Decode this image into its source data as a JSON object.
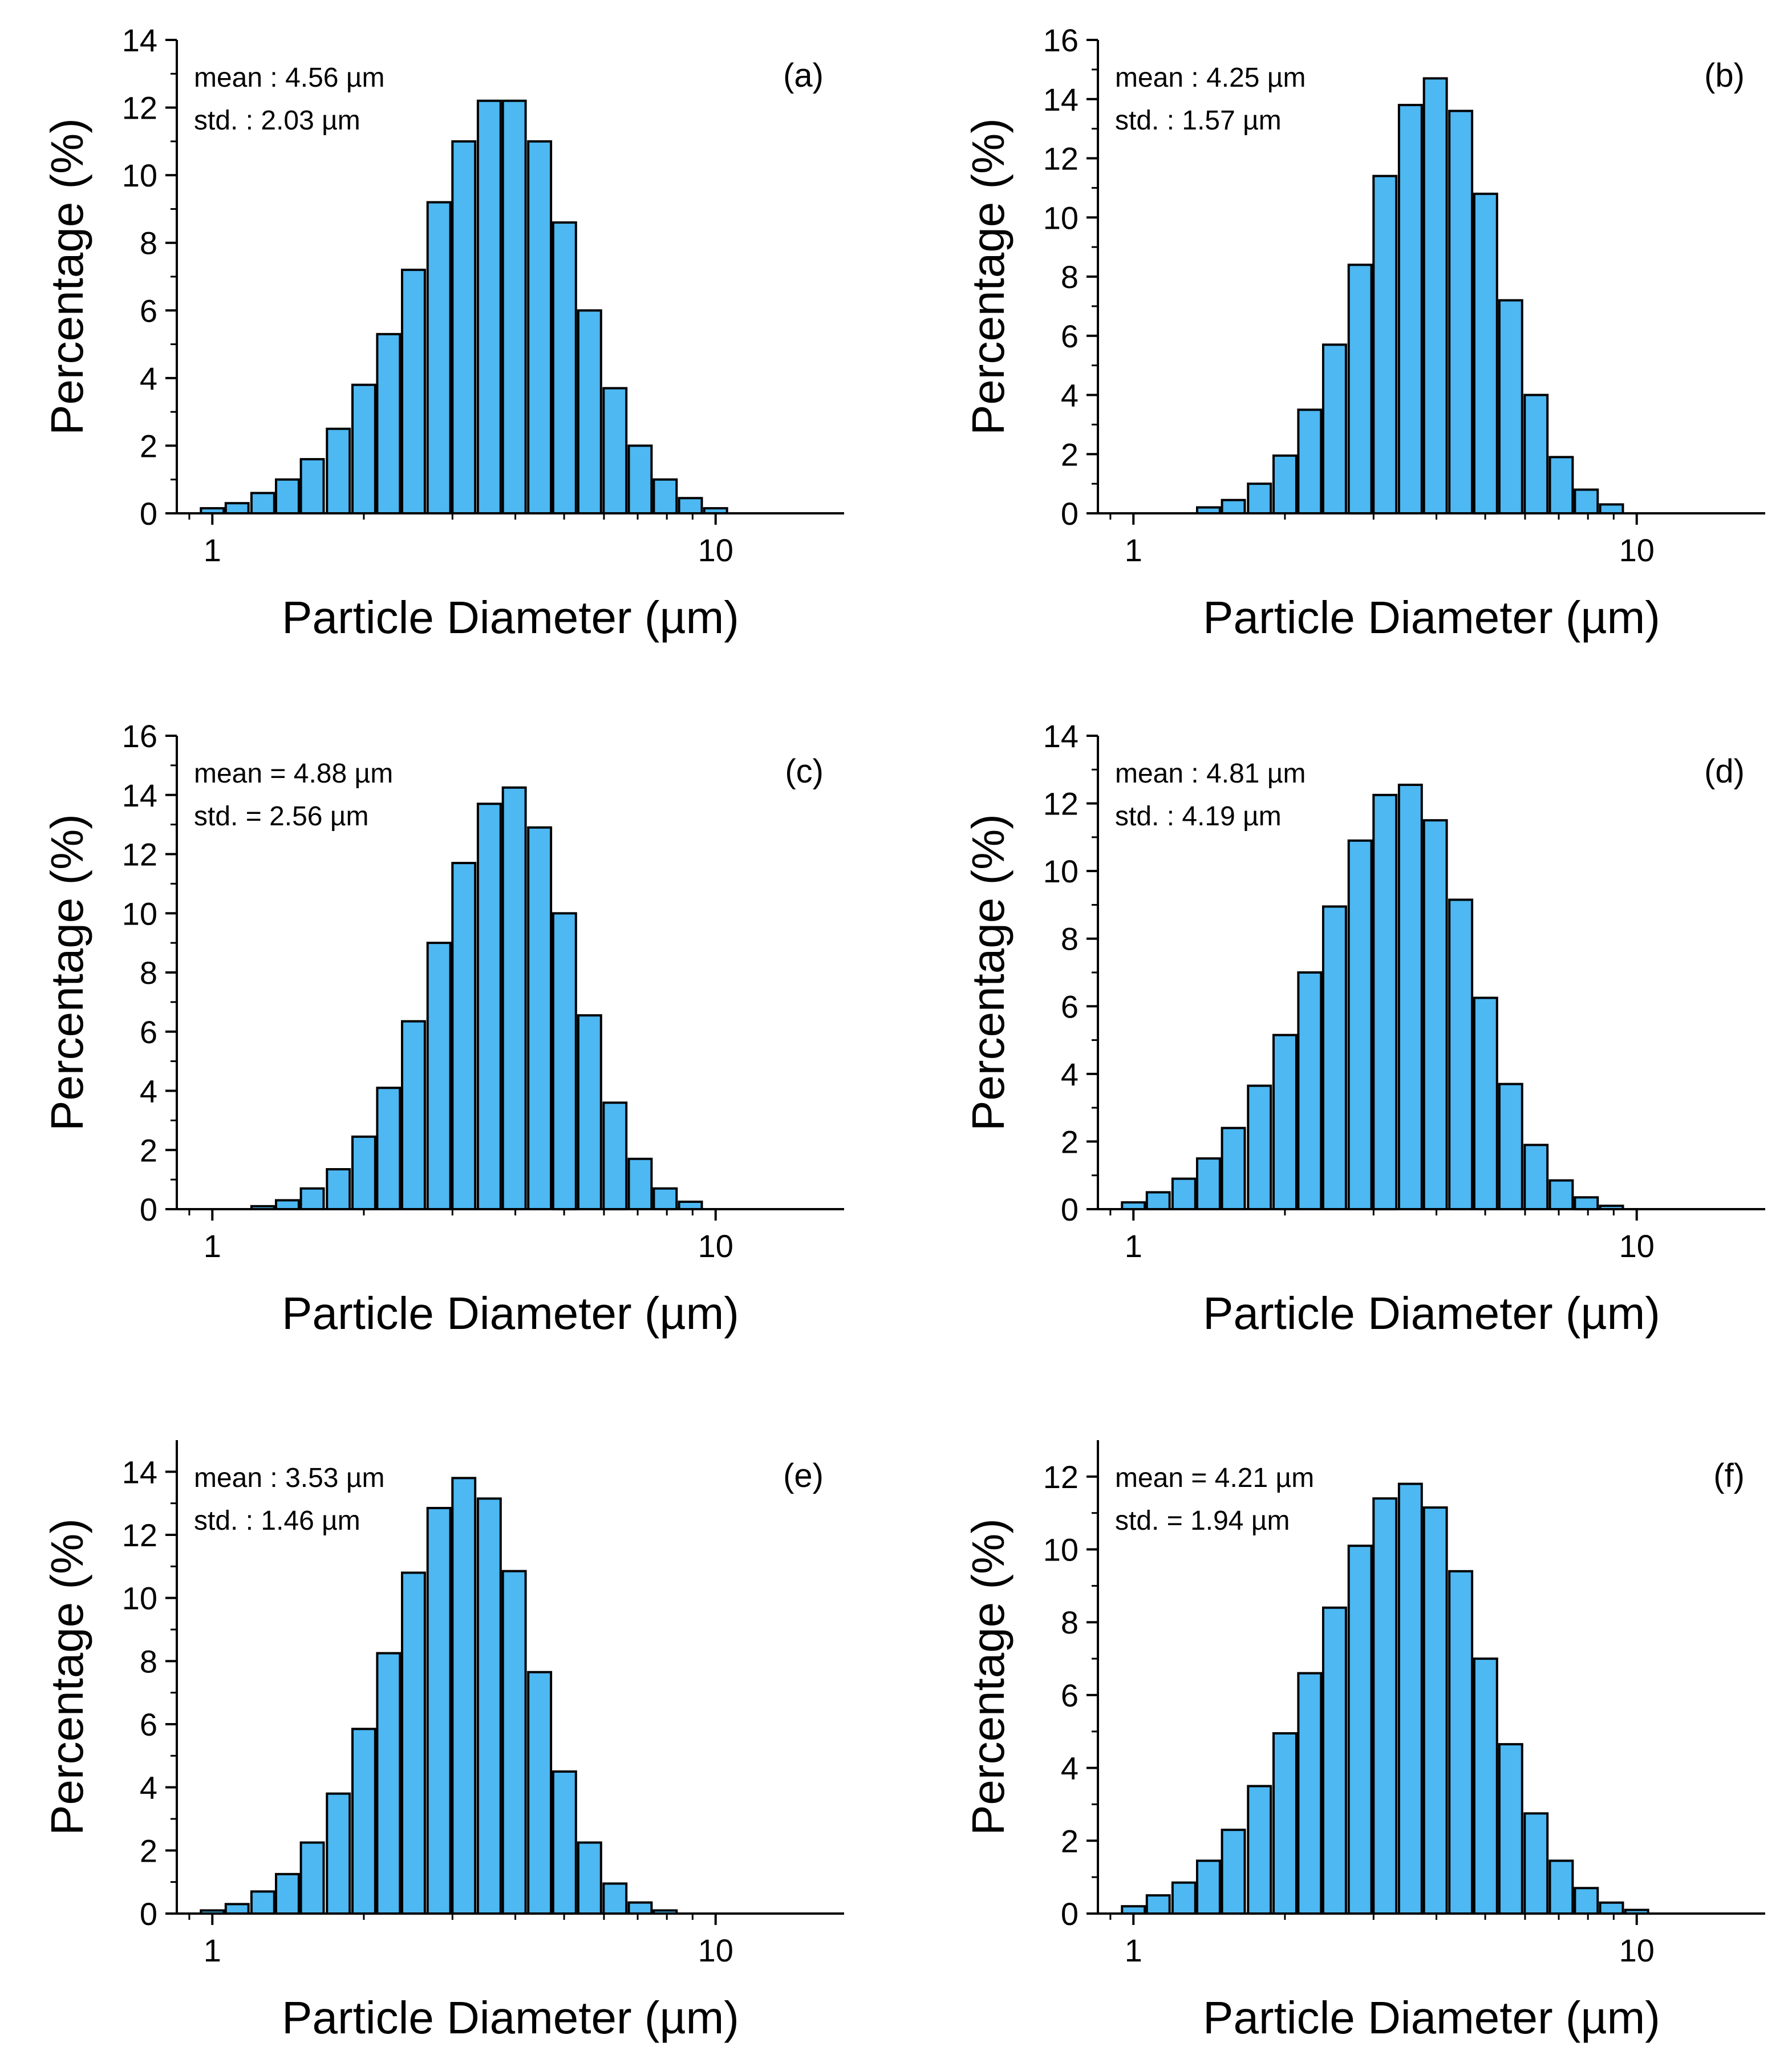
{
  "style": {
    "bar_color": "#4DB8F2",
    "edge_color": "#000000"
  },
  "chart_data": [
    {
      "type": "bar",
      "panel_label": "(a)",
      "xlabel": "Particle Diameter (µm)",
      "ylabel": "Percentage (%)",
      "x_scale": "log",
      "xlim": [
        0.85,
        18
      ],
      "x_ticks": [
        1,
        10
      ],
      "ylim": [
        0,
        14
      ],
      "y_ticks": [
        0,
        2,
        4,
        6,
        8,
        10,
        12,
        14
      ],
      "grid": false,
      "annotations": [
        "mean : 4.56 µm",
        "std. : 2.03 µm"
      ],
      "x": [
        1.0,
        1.12,
        1.26,
        1.41,
        1.58,
        1.78,
        2.0,
        2.24,
        2.51,
        2.82,
        3.16,
        3.55,
        3.98,
        4.47,
        5.01,
        5.62,
        6.31,
        7.08,
        7.94,
        8.91,
        10.0,
        11.22,
        12.59,
        14.13
      ],
      "values": [
        0.15,
        0.3,
        0.6,
        1.0,
        1.6,
        2.5,
        3.8,
        5.3,
        7.2,
        9.2,
        11.0,
        12.2,
        12.2,
        11.0,
        8.6,
        6.0,
        3.7,
        2.0,
        1.0,
        0.45,
        0.15,
        0.0,
        0.0,
        0.0
      ]
    },
    {
      "type": "bar",
      "panel_label": "(b)",
      "xlabel": "Particle Diameter (µm)",
      "ylabel": "Percentage (%)",
      "x_scale": "log",
      "xlim": [
        0.85,
        18
      ],
      "x_ticks": [
        1,
        10
      ],
      "ylim": [
        0,
        16
      ],
      "y_ticks": [
        0,
        2,
        4,
        6,
        8,
        10,
        12,
        14,
        16
      ],
      "grid": false,
      "annotations": [
        "mean : 4.25 µm",
        "std. : 1.57 µm"
      ],
      "x": [
        1.41,
        1.58,
        1.78,
        2.0,
        2.24,
        2.51,
        2.82,
        3.16,
        3.55,
        3.98,
        4.47,
        5.01,
        5.62,
        6.31,
        7.08,
        7.94,
        8.91,
        10.0
      ],
      "values": [
        0.2,
        0.45,
        1.0,
        1.95,
        3.5,
        5.7,
        8.4,
        11.4,
        13.8,
        14.7,
        13.6,
        10.8,
        7.2,
        4.0,
        1.9,
        0.8,
        0.3,
        0.0
      ]
    },
    {
      "type": "bar",
      "panel_label": "(c)",
      "xlabel": "Particle Diameter (µm)",
      "ylabel": "Percentage (%)",
      "x_scale": "log",
      "xlim": [
        0.85,
        18
      ],
      "x_ticks": [
        1,
        10
      ],
      "ylim": [
        0,
        16
      ],
      "y_ticks": [
        0,
        2,
        4,
        6,
        8,
        10,
        12,
        14,
        16
      ],
      "grid": false,
      "annotations": [
        "mean = 4.88 µm",
        "std. = 2.56 µm"
      ],
      "x": [
        1.26,
        1.41,
        1.58,
        1.78,
        2.0,
        2.24,
        2.51,
        2.82,
        3.16,
        3.55,
        3.98,
        4.47,
        5.01,
        5.62,
        6.31,
        7.08,
        7.94,
        8.91,
        10.0
      ],
      "values": [
        0.1,
        0.3,
        0.7,
        1.35,
        2.45,
        4.1,
        6.35,
        9.0,
        11.7,
        13.7,
        14.25,
        12.9,
        10.0,
        6.55,
        3.6,
        1.7,
        0.7,
        0.25,
        0.0
      ]
    },
    {
      "type": "bar",
      "panel_label": "(d)",
      "xlabel": "Particle Diameter (µm)",
      "ylabel": "Percentage (%)",
      "x_scale": "log",
      "xlim": [
        0.85,
        18
      ],
      "x_ticks": [
        1,
        10
      ],
      "ylim": [
        0,
        14
      ],
      "y_ticks": [
        0,
        2,
        4,
        6,
        8,
        10,
        12,
        14
      ],
      "grid": false,
      "annotations": [
        "mean : 4.81 µm",
        "std. : 4.19 µm"
      ],
      "x": [
        1.0,
        1.12,
        1.26,
        1.41,
        1.58,
        1.78,
        2.0,
        2.24,
        2.51,
        2.82,
        3.16,
        3.55,
        3.98,
        4.47,
        5.01,
        5.62,
        6.31,
        7.08,
        7.94,
        8.91,
        10.0,
        11.22,
        12.59
      ],
      "values": [
        0.2,
        0.5,
        0.9,
        1.5,
        2.4,
        3.65,
        5.15,
        7.0,
        8.95,
        10.9,
        12.25,
        12.55,
        11.5,
        9.15,
        6.25,
        3.7,
        1.9,
        0.85,
        0.35,
        0.1,
        0.0,
        0.0,
        0.0
      ]
    },
    {
      "type": "bar",
      "panel_label": "(e)",
      "xlabel": "Particle Diameter (µm)",
      "ylabel": "Percentage (%)",
      "x_scale": "log",
      "xlim": [
        0.85,
        18
      ],
      "x_ticks": [
        1,
        10
      ],
      "ylim": [
        0,
        15
      ],
      "y_ticks": [
        0,
        2,
        4,
        6,
        8,
        10,
        12,
        14
      ],
      "grid": false,
      "annotations": [
        "mean : 3.53 µm",
        "std. : 1.46 µm"
      ],
      "x": [
        1.0,
        1.12,
        1.26,
        1.41,
        1.58,
        1.78,
        2.0,
        2.24,
        2.51,
        2.82,
        3.16,
        3.55,
        3.98,
        4.47,
        5.01,
        5.62,
        6.31,
        7.08,
        7.94,
        8.91
      ],
      "values": [
        0.1,
        0.3,
        0.7,
        1.25,
        2.25,
        3.8,
        5.85,
        8.25,
        10.8,
        12.85,
        13.8,
        13.15,
        10.85,
        7.65,
        4.5,
        2.25,
        0.95,
        0.35,
        0.1,
        0.0
      ]
    },
    {
      "type": "bar",
      "panel_label": "(f)",
      "xlabel": "Particle Diameter (µm)",
      "ylabel": "Percentage (%)",
      "x_scale": "log",
      "xlim": [
        0.85,
        18
      ],
      "x_ticks": [
        1,
        10
      ],
      "ylim": [
        0,
        13
      ],
      "y_ticks": [
        0,
        2,
        4,
        6,
        8,
        10,
        12
      ],
      "grid": false,
      "annotations": [
        "mean = 4.21 µm",
        "std. = 1.94 µm"
      ],
      "x": [
        1.0,
        1.12,
        1.26,
        1.41,
        1.58,
        1.78,
        2.0,
        2.24,
        2.51,
        2.82,
        3.16,
        3.55,
        3.98,
        4.47,
        5.01,
        5.62,
        6.31,
        7.08,
        7.94,
        8.91,
        10.0,
        11.22,
        12.59,
        14.13
      ],
      "values": [
        0.2,
        0.5,
        0.85,
        1.45,
        2.3,
        3.5,
        4.95,
        6.6,
        8.4,
        10.1,
        11.4,
        11.8,
        11.15,
        9.4,
        7.0,
        4.65,
        2.75,
        1.45,
        0.7,
        0.3,
        0.1,
        0.0,
        0.0,
        0.0
      ]
    }
  ]
}
